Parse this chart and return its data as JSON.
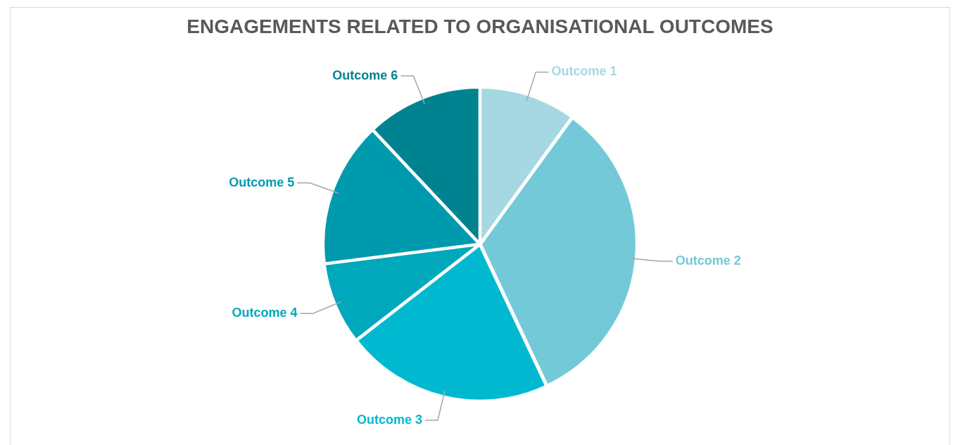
{
  "chart_data": {
    "type": "pie",
    "title": "ENGAGEMENTS RELATED TO ORGANISATIONAL OUTCOMES",
    "categories": [
      "Outcome 1",
      "Outcome 2",
      "Outcome 3",
      "Outcome 4",
      "Outcome 5",
      "Outcome 6"
    ],
    "values": [
      10,
      33,
      21.5,
      8.5,
      15,
      12
    ],
    "colors": [
      "#a5d8e3",
      "#74c9d9",
      "#00b9d1",
      "#00a8bc",
      "#009aae",
      "#008391"
    ],
    "legend": false
  }
}
